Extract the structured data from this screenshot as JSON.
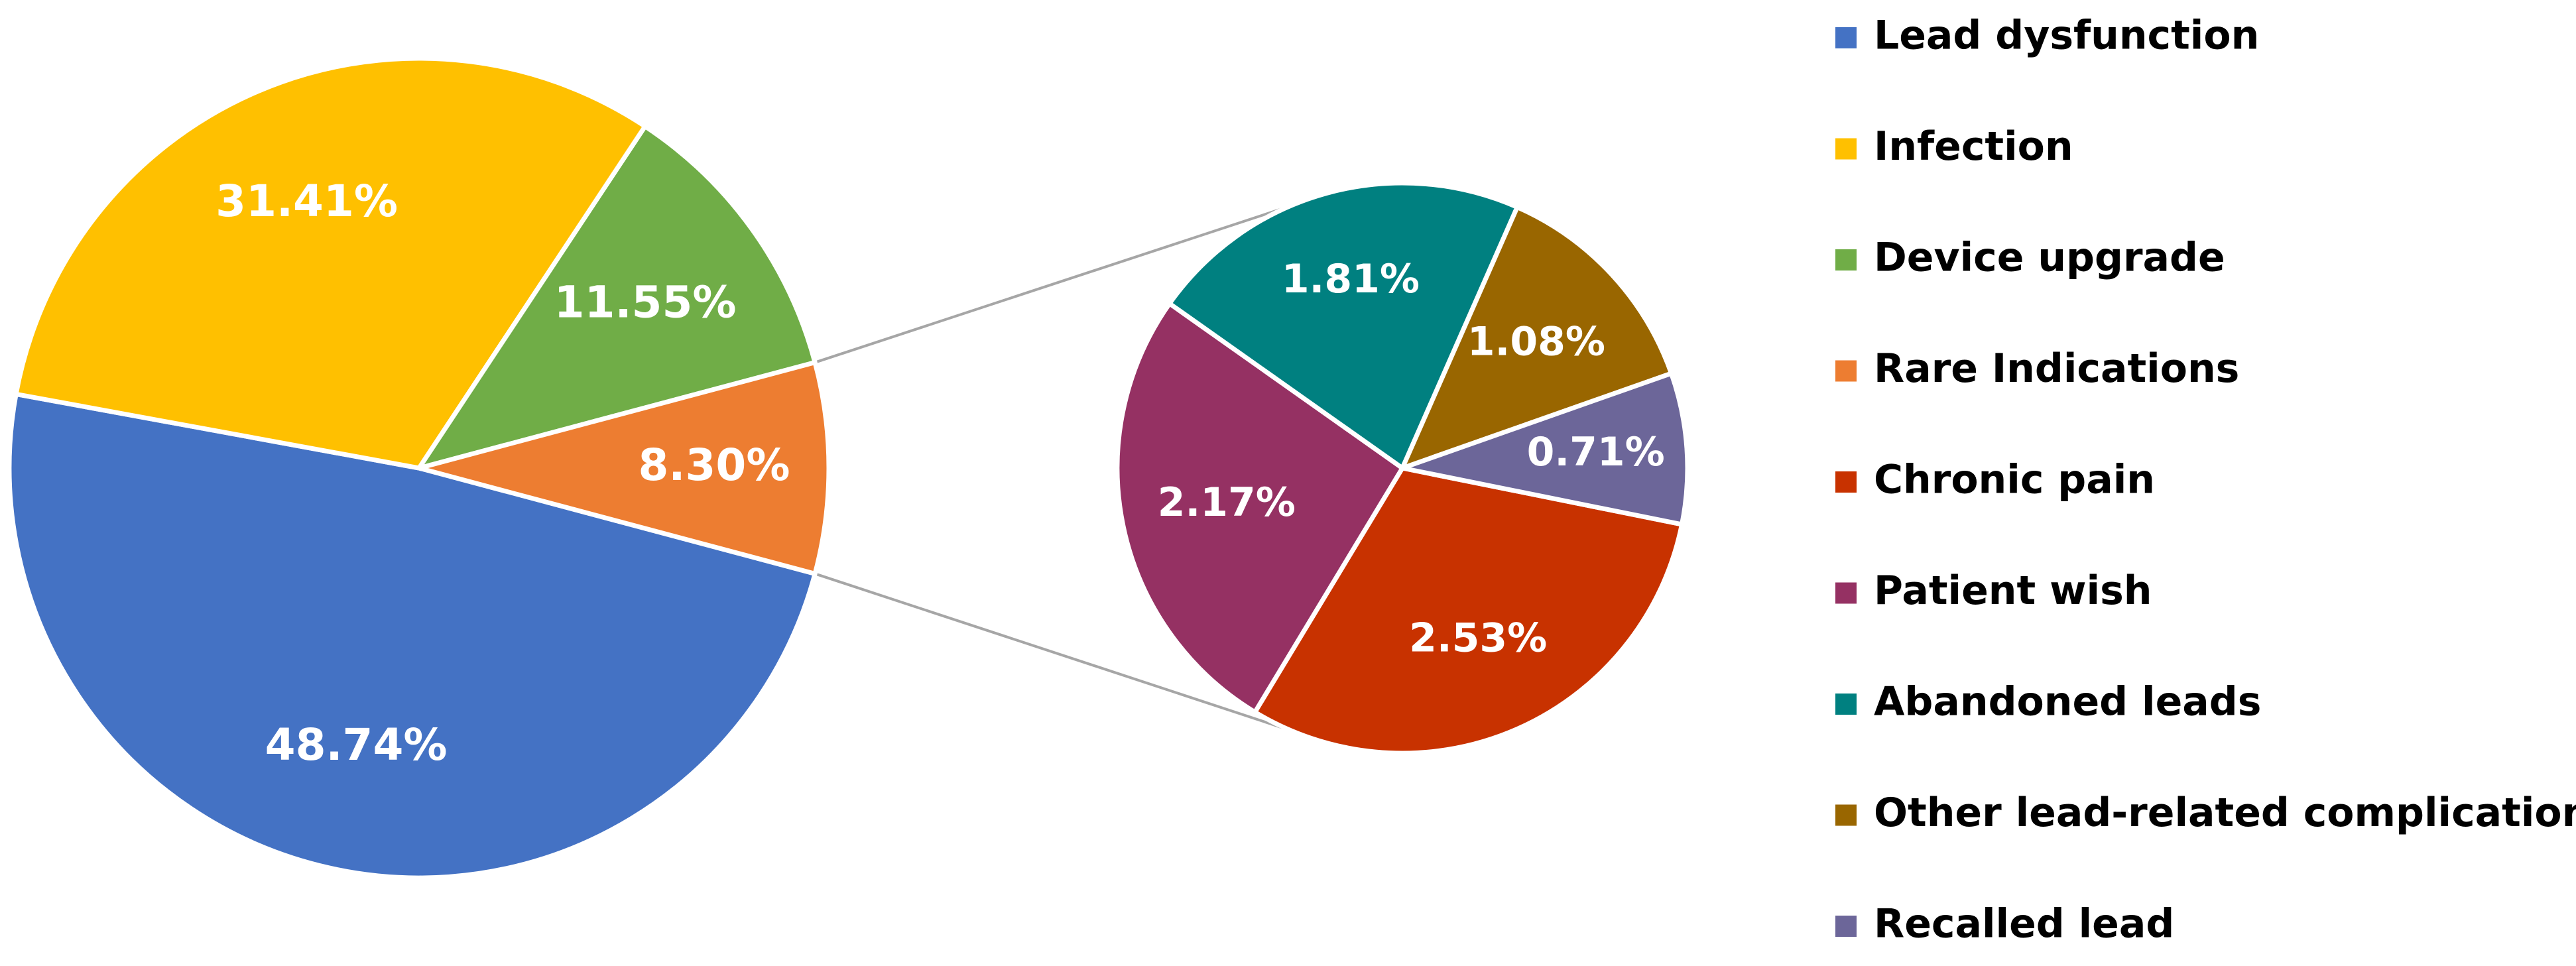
{
  "chart_data": {
    "type": "pie",
    "subtype": "pie-of-pie",
    "title": "",
    "main_pie": {
      "slices": [
        {
          "name": "Lead dysfunction",
          "value": 48.74,
          "label": "48.74%",
          "color": "#4472C4"
        },
        {
          "name": "Infection",
          "value": 31.41,
          "label": "31.41%",
          "color": "#FFC000"
        },
        {
          "name": "Device upgrade",
          "value": 11.55,
          "label": "11.55%",
          "color": "#70AD47"
        },
        {
          "name": "Rare Indications",
          "value": 8.3,
          "label": "8.30%",
          "color": "#ED7D31"
        }
      ]
    },
    "secondary_pie": {
      "breakdown_of": "Rare Indications",
      "slices": [
        {
          "name": "Chronic pain",
          "value": 2.53,
          "label": "2.53%",
          "color": "#C83200"
        },
        {
          "name": "Patient wish",
          "value": 2.17,
          "label": "2.17%",
          "color": "#953163"
        },
        {
          "name": "Abandoned leads",
          "value": 1.81,
          "label": "1.81%",
          "color": "#008080"
        },
        {
          "name": "Other lead-related complications",
          "value": 1.08,
          "label": "1.08%",
          "color": "#996600"
        },
        {
          "name": "Recalled lead",
          "value": 0.71,
          "label": "0.71%",
          "color": "#6C6699"
        }
      ]
    },
    "legend": {
      "position": "right",
      "items": [
        {
          "name": "Lead dysfunction",
          "color": "#4472C4"
        },
        {
          "name": "Infection",
          "color": "#FFC000"
        },
        {
          "name": "Device upgrade",
          "color": "#70AD47"
        },
        {
          "name": "Rare Indications",
          "color": "#ED7D31"
        },
        {
          "name": "Chronic pain",
          "color": "#C83200"
        },
        {
          "name": "Patient wish",
          "color": "#953163"
        },
        {
          "name": "Abandoned leads",
          "color": "#008080"
        },
        {
          "name": "Other lead-related complications",
          "color": "#996600"
        },
        {
          "name": "Recalled lead",
          "color": "#6C6699"
        }
      ]
    },
    "connector_color": "#A6A6A6"
  }
}
